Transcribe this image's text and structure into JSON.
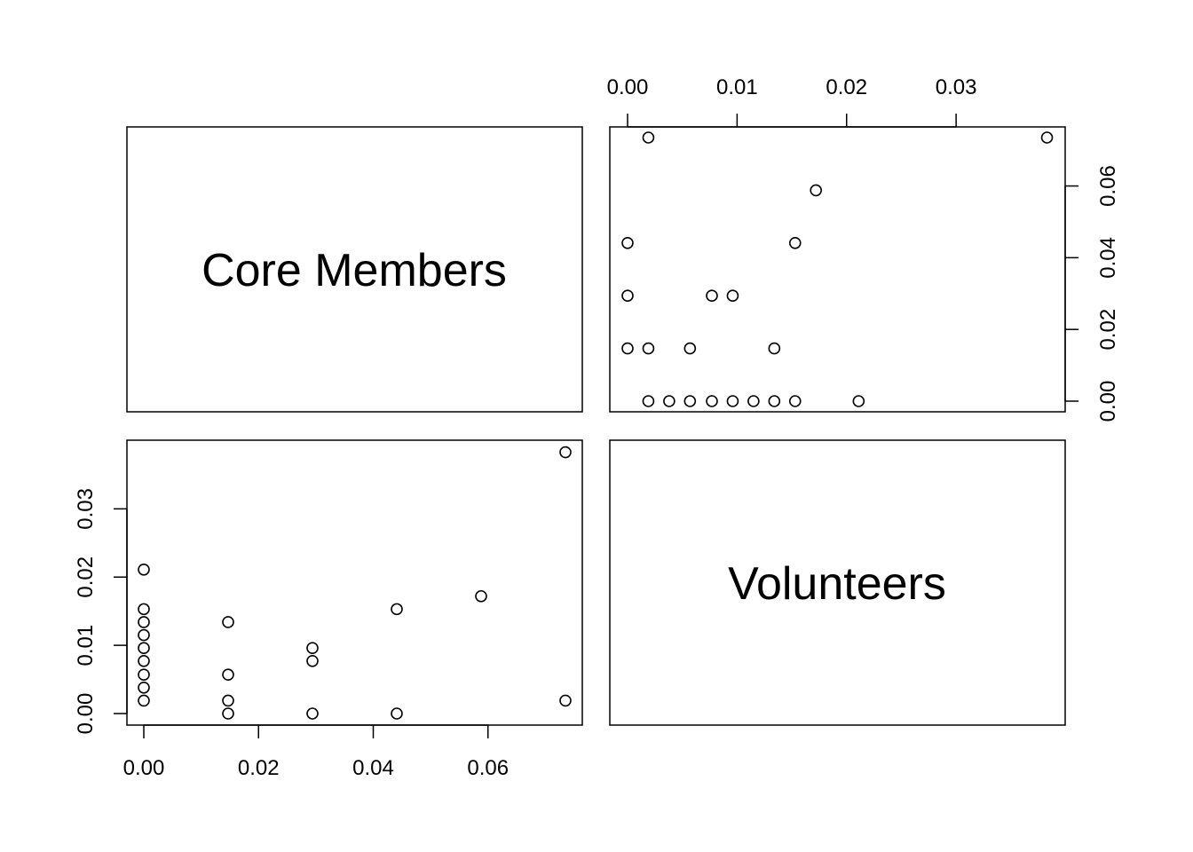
{
  "chart_data": {
    "type": "scatter",
    "title": "",
    "layout": "pairs-matrix",
    "variables": [
      "Core Members",
      "Volunteers"
    ],
    "axes": {
      "core_members": {
        "range": [
          0.0,
          0.0735
        ],
        "ticks": [
          0.0,
          0.02,
          0.04,
          0.06
        ],
        "tick_labels": [
          "0.00",
          "0.02",
          "0.04",
          "0.06"
        ]
      },
      "volunteers": {
        "range": [
          0.0,
          0.0385
        ],
        "ticks": [
          0.0,
          0.01,
          0.02,
          0.03
        ],
        "tick_labels": [
          "0.00",
          "0.01",
          "0.02",
          "0.03"
        ]
      }
    },
    "grid": false,
    "legend": "none",
    "points": [
      {
        "core": 0.0,
        "vol": 0.0019
      },
      {
        "core": 0.0,
        "vol": 0.0038
      },
      {
        "core": 0.0,
        "vol": 0.0057
      },
      {
        "core": 0.0,
        "vol": 0.0077
      },
      {
        "core": 0.0,
        "vol": 0.0096
      },
      {
        "core": 0.0,
        "vol": 0.0115
      },
      {
        "core": 0.0,
        "vol": 0.0134
      },
      {
        "core": 0.0,
        "vol": 0.0153
      },
      {
        "core": 0.0,
        "vol": 0.0211
      },
      {
        "core": 0.0147,
        "vol": 0.0
      },
      {
        "core": 0.0147,
        "vol": 0.0019
      },
      {
        "core": 0.0147,
        "vol": 0.0057
      },
      {
        "core": 0.0147,
        "vol": 0.0134
      },
      {
        "core": 0.0294,
        "vol": 0.0
      },
      {
        "core": 0.0294,
        "vol": 0.0077
      },
      {
        "core": 0.0294,
        "vol": 0.0096
      },
      {
        "core": 0.0441,
        "vol": 0.0
      },
      {
        "core": 0.0441,
        "vol": 0.0153
      },
      {
        "core": 0.0588,
        "vol": 0.0172
      },
      {
        "core": 0.0735,
        "vol": 0.0019
      },
      {
        "core": 0.0735,
        "vol": 0.0383
      }
    ]
  }
}
